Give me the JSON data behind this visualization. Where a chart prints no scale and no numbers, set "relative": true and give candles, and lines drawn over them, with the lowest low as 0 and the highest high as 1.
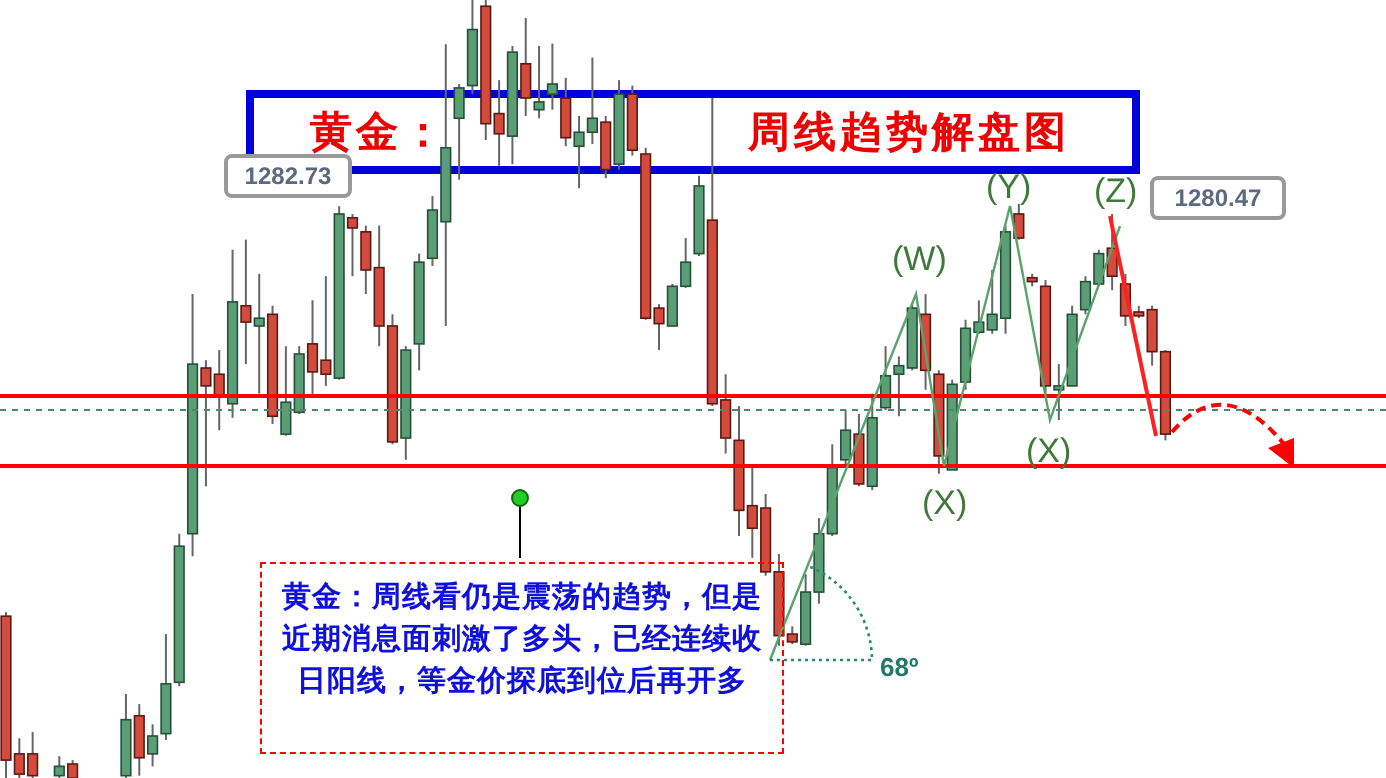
{
  "chart_data": {
    "type": "candlestick",
    "title": "黄金：周线趋势解盘图",
    "relative": true,
    "categories": [
      null,
      null,
      null,
      null,
      null,
      null,
      null,
      null,
      null,
      null,
      null,
      null,
      null,
      null,
      null,
      null,
      null,
      null,
      null,
      null,
      null,
      null,
      null,
      null,
      null,
      null,
      null,
      null,
      null,
      null,
      null,
      null,
      null,
      null,
      null,
      null,
      null,
      null,
      null,
      null,
      null,
      null,
      null,
      null,
      null,
      null,
      null,
      null,
      null,
      null,
      null,
      null,
      null,
      null,
      null,
      null,
      null,
      null,
      null,
      null,
      null,
      null,
      null,
      null,
      null,
      null,
      null,
      null,
      null,
      null,
      null,
      null,
      null,
      null,
      null,
      null,
      null,
      null,
      null,
      null,
      null,
      null,
      null,
      null,
      null,
      null,
      null,
      null,
      null,
      null,
      null,
      null,
      null,
      null,
      null,
      null,
      null,
      null,
      null,
      null,
      null,
      null,
      null,
      null
    ],
    "ohlc": [
      [
        0.208,
        0.213,
        0,
        0.023
      ],
      [
        0.031,
        0.051,
        0,
        0.005
      ],
      [
        0.031,
        0.059,
        0,
        0.003
      ],
      null,
      [
        0.003,
        0.028,
        0,
        0.015
      ],
      [
        0.018,
        0.023,
        0,
        0
      ],
      null,
      null,
      null,
      [
        0.003,
        0.108,
        0,
        0.075
      ],
      [
        0.08,
        0.095,
        0.003,
        0.026
      ],
      [
        0.031,
        0.069,
        0.015,
        0.054
      ],
      [
        0.057,
        0.185,
        0.049,
        0.121
      ],
      [
        0.123,
        0.314,
        0.118,
        0.298
      ],
      [
        0.314,
        0.622,
        0.285,
        0.532
      ],
      [
        0.527,
        0.537,
        0.375,
        0.504
      ],
      [
        0.519,
        0.55,
        0.447,
        0.491
      ],
      [
        0.481,
        0.679,
        0.463,
        0.612
      ],
      [
        0.607,
        0.692,
        0.532,
        0.586
      ],
      [
        0.581,
        0.648,
        0.494,
        0.591
      ],
      [
        0.596,
        0.607,
        0.455,
        0.465
      ],
      [
        0.442,
        0.555,
        0.44,
        0.483
      ],
      [
        0.47,
        0.555,
        0.468,
        0.545
      ],
      [
        0.558,
        0.614,
        0.491,
        0.522
      ],
      [
        0.537,
        0.645,
        0.504,
        0.519
      ],
      [
        0.514,
        0.735,
        0.512,
        0.725
      ],
      [
        0.72,
        0.725,
        0.645,
        0.707
      ],
      [
        0.702,
        0.71,
        0.622,
        0.653
      ],
      [
        0.656,
        0.71,
        0.555,
        0.581
      ],
      [
        0.581,
        0.596,
        0.429,
        0.432
      ],
      [
        0.437,
        0.555,
        0.409,
        0.55
      ],
      [
        0.558,
        0.674,
        0.524,
        0.663
      ],
      [
        0.668,
        0.748,
        0.658,
        0.73
      ],
      [
        0.715,
        0.943,
        0.581,
        0.81
      ],
      [
        0.848,
        0.892,
        0.769,
        0.887
      ],
      [
        0.89,
        1,
        0.879,
        0.962
      ],
      [
        0.992,
        1,
        0.82,
        0.841
      ],
      [
        0.854,
        0.897,
        0.787,
        0.828
      ],
      [
        0.825,
        0.941,
        0.789,
        0.933
      ],
      [
        0.918,
        0.977,
        0.851,
        0.874
      ],
      [
        0.859,
        0.941,
        0.848,
        0.869
      ],
      [
        0.879,
        0.944,
        0.859,
        0.892
      ],
      [
        0.874,
        0.9,
        0.812,
        0.823
      ],
      [
        0.812,
        0.851,
        0.758,
        0.83
      ],
      [
        0.83,
        0.926,
        0.815,
        0.848
      ],
      [
        0.843,
        0.851,
        0.771,
        0.782
      ],
      [
        0.789,
        0.897,
        0.782,
        0.879
      ],
      [
        0.879,
        0.89,
        0.8,
        0.807
      ],
      [
        0.802,
        0.81,
        0.589,
        0.591
      ],
      [
        0.604,
        0.609,
        0.55,
        0.584
      ],
      [
        0.581,
        0.635,
        0.581,
        0.632
      ],
      [
        0.632,
        0.694,
        0.63,
        0.663
      ],
      [
        0.674,
        0.774,
        0.671,
        0.761
      ],
      [
        0.717,
        0.874,
        0.478,
        0.481
      ],
      [
        0.486,
        0.519,
        0.417,
        0.437
      ],
      [
        0.434,
        0.478,
        0.311,
        0.344
      ],
      [
        0.35,
        0.401,
        0.283,
        0.321
      ],
      [
        0.347,
        0.365,
        0.26,
        0.265
      ],
      [
        0.265,
        0.288,
        0.17,
        0.183
      ],
      [
        0.185,
        0.195,
        0.172,
        0.175
      ],
      [
        0.172,
        0.262,
        0.17,
        0.239
      ],
      [
        0.239,
        0.334,
        0.224,
        0.314
      ],
      [
        0.314,
        0.429,
        0.311,
        0.399
      ],
      [
        0.409,
        0.473,
        0.401,
        0.447
      ],
      [
        0.442,
        0.468,
        0.375,
        0.378
      ],
      [
        0.375,
        0.494,
        0.37,
        0.463
      ],
      [
        0.476,
        0.555,
        0.473,
        0.517
      ],
      [
        0.519,
        0.542,
        0.465,
        0.53
      ],
      [
        0.527,
        0.609,
        0.524,
        0.604
      ],
      [
        0.596,
        0.622,
        0.499,
        0.524
      ],
      [
        0.519,
        0.524,
        0.391,
        0.414
      ],
      [
        0.396,
        0.512,
        0.396,
        0.506
      ],
      [
        0.509,
        0.589,
        0.499,
        0.578
      ],
      [
        0.573,
        0.614,
        0.571,
        0.586
      ],
      [
        0.576,
        0.653,
        0.571,
        0.596
      ],
      [
        0.591,
        0.71,
        0.571,
        0.702
      ],
      [
        0.725,
        0.738,
        0.692,
        0.694
      ],
      [
        0.643,
        0.648,
        0.632,
        0.638
      ],
      [
        0.632,
        0.64,
        0.494,
        0.504
      ],
      [
        0.499,
        0.532,
        0.46,
        0.504
      ],
      [
        0.504,
        0.607,
        0.504,
        0.596
      ],
      [
        0.602,
        0.645,
        0.596,
        0.638
      ],
      [
        0.635,
        0.679,
        0.632,
        0.674
      ],
      [
        0.681,
        0.725,
        0.627,
        0.645
      ],
      [
        0.635,
        0.648,
        0.581,
        0.594
      ],
      [
        0.599,
        0.607,
        0.591,
        0.594
      ],
      [
        0.602,
        0.607,
        0.53,
        0.548
      ],
      [
        0.548,
        0.55,
        0.434,
        0.442
      ],
      null,
      null,
      null,
      null,
      null,
      null,
      null,
      null,
      null,
      null,
      null,
      null,
      null,
      null,
      null,
      null
    ],
    "ref_lines": [
      {
        "axis": "y",
        "value": 0.401,
        "color": "#ff0000"
      },
      {
        "axis": "y",
        "value": 0.491,
        "color": "#ff0000"
      },
      {
        "axis": "y",
        "value": 0.473,
        "color": "#4a8a6a",
        "line_style": "dashed"
      }
    ],
    "annotations": [
      "1282.73",
      "1280.47",
      "(W)",
      "(X)",
      "(Y)",
      "(X)",
      "(Z)",
      "68º",
      "黄金：周线看仍是震荡的趋势，但是近期消息面刺激了多头，已经连续收日阳线，等金价探底到位后再开多"
    ]
  }
}
